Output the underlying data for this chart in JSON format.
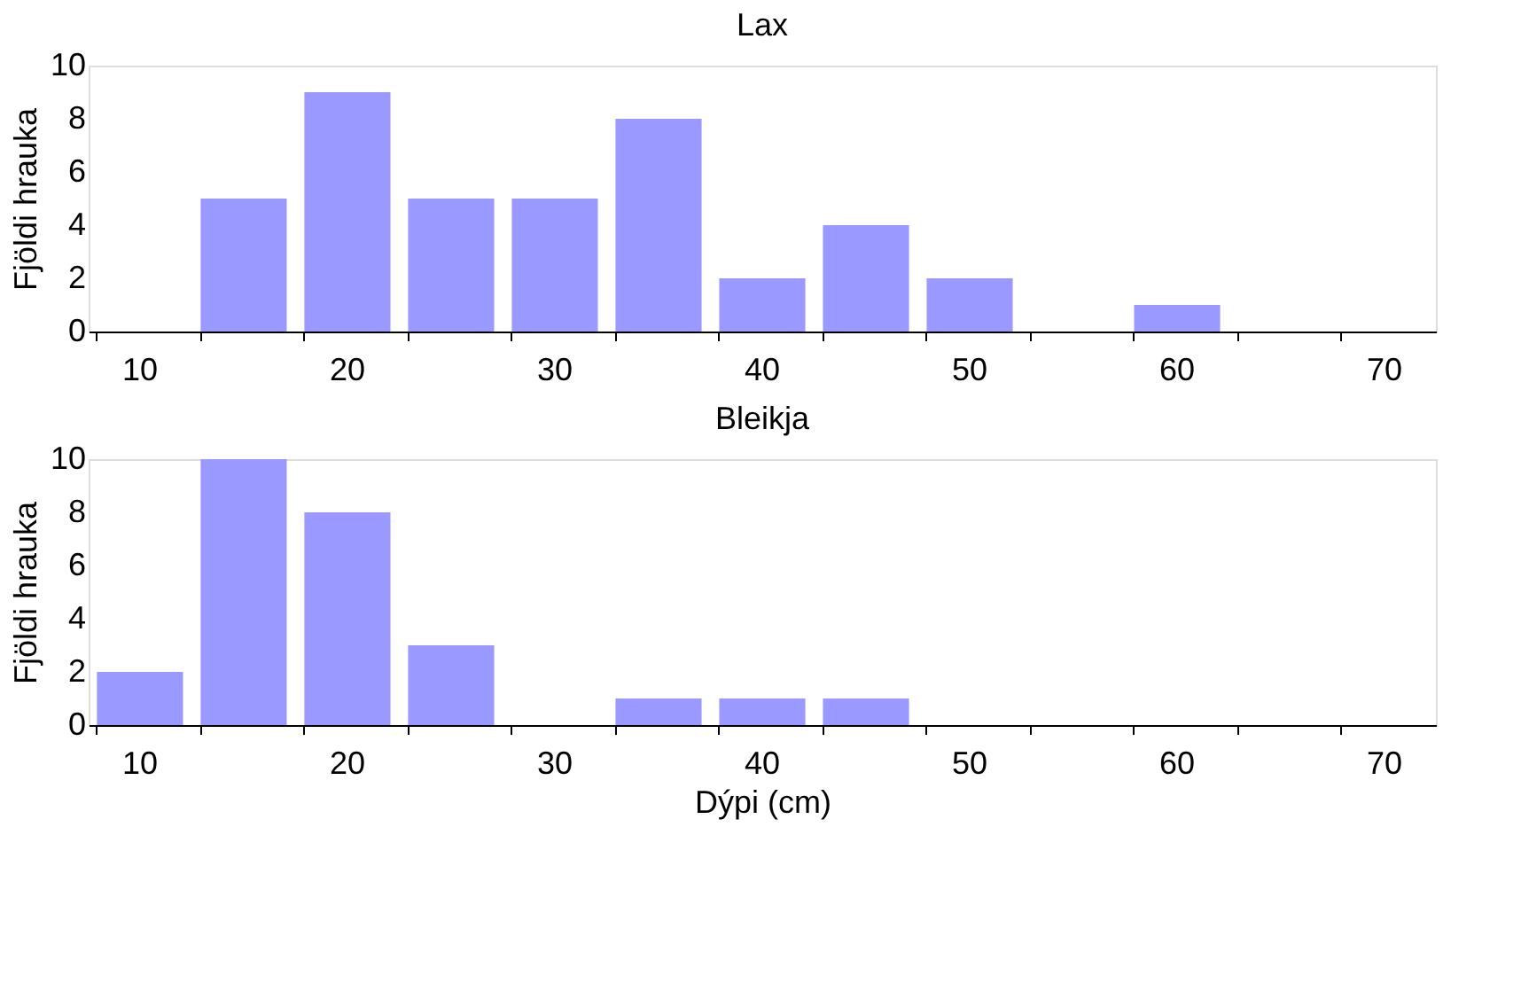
{
  "chart_data": [
    {
      "type": "bar",
      "title": "Lax",
      "ylabel": "Fjöldi hrauka",
      "categories": [
        "10",
        null,
        "20",
        null,
        "30",
        null,
        "40",
        null,
        "50",
        null,
        "60",
        null,
        "70"
      ],
      "values": [
        0,
        5,
        9,
        5,
        5,
        8,
        2,
        4,
        2,
        0,
        1,
        0,
        0
      ],
      "color": "#9999ff",
      "ylim": [
        0,
        10
      ],
      "yticks": [
        0,
        2,
        4,
        6,
        8,
        10
      ]
    },
    {
      "type": "bar",
      "title": "Bleikja",
      "ylabel": "Fjöldi hrauka",
      "xlabel": "Dýpi (cm)",
      "categories": [
        "10",
        null,
        "20",
        null,
        "30",
        null,
        "40",
        null,
        "50",
        null,
        "60",
        null,
        "70"
      ],
      "values": [
        2,
        10,
        8,
        3,
        0,
        1,
        1,
        1,
        0,
        0,
        0,
        0,
        0
      ],
      "color": "#9999ff",
      "ylim": [
        0,
        10
      ],
      "yticks": [
        0,
        2,
        4,
        6,
        8,
        10
      ]
    }
  ]
}
